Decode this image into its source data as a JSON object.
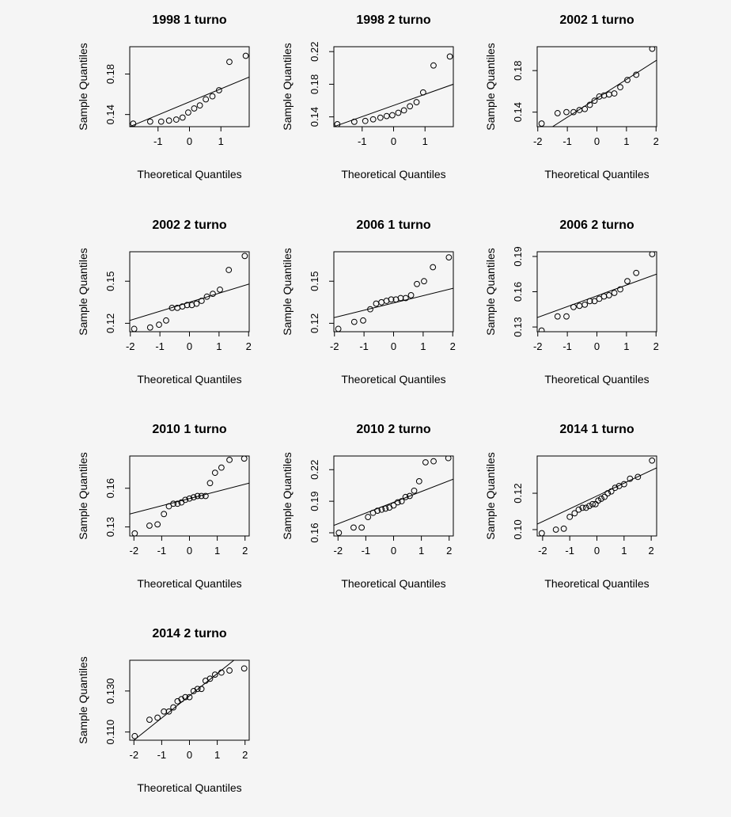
{
  "chart_data": [
    {
      "type": "scatter",
      "title": "1998 1 turno",
      "xlabel": "Theoretical Quantiles",
      "ylabel": "Sample Quantiles",
      "xlim": [
        -1.9,
        1.9
      ],
      "ylim": [
        0.128,
        0.207
      ],
      "xticks": [
        -1,
        0,
        1
      ],
      "xtick_labels": [
        "-1",
        "0",
        "1"
      ],
      "yticks": [
        0.14,
        0.18
      ],
      "ytick_labels": [
        "0.14",
        "0.18"
      ],
      "points": {
        "x": [
          -1.79,
          -1.25,
          -0.9,
          -0.65,
          -0.42,
          -0.22,
          -0.04,
          0.15,
          0.33,
          0.52,
          0.73,
          0.94,
          1.27,
          1.79
        ],
        "y": [
          0.131,
          0.133,
          0.133,
          0.134,
          0.135,
          0.137,
          0.142,
          0.146,
          0.149,
          0.155,
          0.158,
          0.164,
          0.192,
          0.198
        ]
      },
      "qqline": {
        "x": [
          -1.9,
          1.9
        ],
        "y": [
          0.128,
          0.177
        ]
      }
    },
    {
      "type": "scatter",
      "title": "1998 2 turno",
      "xlabel": "Theoretical Quantiles",
      "ylabel": "Sample Quantiles",
      "xlim": [
        -1.9,
        1.9
      ],
      "ylim": [
        0.128,
        0.226
      ],
      "xticks": [
        -1,
        0,
        1
      ],
      "xtick_labels": [
        "-1",
        "0",
        "1"
      ],
      "yticks": [
        0.14,
        0.18,
        0.22
      ],
      "ytick_labels": [
        "0.14",
        "0.18",
        "0.22"
      ],
      "points": {
        "x": [
          -1.79,
          -1.25,
          -0.9,
          -0.65,
          -0.42,
          -0.22,
          -0.04,
          0.15,
          0.33,
          0.52,
          0.73,
          0.94,
          1.27,
          1.79
        ],
        "y": [
          0.131,
          0.134,
          0.135,
          0.137,
          0.139,
          0.141,
          0.142,
          0.145,
          0.148,
          0.153,
          0.158,
          0.17,
          0.203,
          0.214
        ]
      },
      "qqline": {
        "x": [
          -1.9,
          1.9
        ],
        "y": [
          0.128,
          0.18
        ]
      }
    },
    {
      "type": "scatter",
      "title": "2002 1 turno",
      "xlabel": "Theoretical Quantiles",
      "ylabel": "Sample Quantiles",
      "xlim": [
        -2.02,
        2.02
      ],
      "ylim": [
        0.126,
        0.203
      ],
      "xticks": [
        -2,
        -1,
        0,
        1,
        2
      ],
      "xtick_labels": [
        "-2",
        "-1",
        "0",
        "1",
        "2"
      ],
      "yticks": [
        0.14,
        0.18
      ],
      "ytick_labels": [
        "0.14",
        "0.18"
      ],
      "points": {
        "x": [
          -1.87,
          -1.33,
          -1.03,
          -0.79,
          -0.59,
          -0.41,
          -0.24,
          -0.08,
          0.08,
          0.24,
          0.41,
          0.59,
          0.79,
          1.03,
          1.33,
          1.87
        ],
        "y": [
          0.129,
          0.139,
          0.14,
          0.14,
          0.142,
          0.143,
          0.147,
          0.151,
          0.155,
          0.156,
          0.157,
          0.158,
          0.164,
          0.171,
          0.176,
          0.201
        ]
      },
      "qqline": {
        "x": [
          -1.5,
          2.02
        ],
        "y": [
          0.126,
          0.19
        ]
      }
    },
    {
      "type": "scatter",
      "title": "2002 2 turno",
      "xlabel": "Theoretical Quantiles",
      "ylabel": "Sample Quantiles",
      "xlim": [
        -2.02,
        2.02
      ],
      "ylim": [
        0.114,
        0.171
      ],
      "xticks": [
        -2,
        -1,
        0,
        1,
        2
      ],
      "xtick_labels": [
        "-2",
        "-1",
        "0",
        "1",
        "2"
      ],
      "yticks": [
        0.12,
        0.15
      ],
      "ytick_labels": [
        "0.12",
        "0.15"
      ],
      "points": {
        "x": [
          -1.87,
          -1.33,
          -1.03,
          -0.79,
          -0.59,
          -0.41,
          -0.24,
          -0.08,
          0.08,
          0.24,
          0.41,
          0.59,
          0.79,
          1.03,
          1.33,
          1.87
        ],
        "y": [
          0.116,
          0.117,
          0.119,
          0.122,
          0.131,
          0.131,
          0.132,
          0.133,
          0.133,
          0.134,
          0.136,
          0.139,
          0.141,
          0.144,
          0.158,
          0.168
        ]
      },
      "qqline": {
        "x": [
          -2.02,
          2.02
        ],
        "y": [
          0.122,
          0.148
        ]
      }
    },
    {
      "type": "scatter",
      "title": "2006 1 turno",
      "xlabel": "Theoretical Quantiles",
      "ylabel": "Sample Quantiles",
      "xlim": [
        -2.02,
        2.02
      ],
      "ylim": [
        0.114,
        0.171
      ],
      "xticks": [
        -2,
        -1,
        0,
        1,
        2
      ],
      "xtick_labels": [
        "-2",
        "-1",
        "0",
        "1",
        "2"
      ],
      "yticks": [
        0.12,
        0.15
      ],
      "ytick_labels": [
        "0.12",
        "0.15"
      ],
      "points": {
        "x": [
          -1.87,
          -1.33,
          -1.03,
          -0.79,
          -0.59,
          -0.41,
          -0.24,
          -0.08,
          0.08,
          0.24,
          0.41,
          0.59,
          0.79,
          1.03,
          1.33,
          1.87
        ],
        "y": [
          0.116,
          0.121,
          0.122,
          0.13,
          0.134,
          0.135,
          0.136,
          0.137,
          0.137,
          0.138,
          0.138,
          0.14,
          0.148,
          0.15,
          0.16,
          0.167
        ]
      },
      "qqline": {
        "x": [
          -2.02,
          2.02
        ],
        "y": [
          0.124,
          0.145
        ]
      }
    },
    {
      "type": "scatter",
      "title": "2006 2 turno",
      "xlabel": "Theoretical Quantiles",
      "ylabel": "Sample Quantiles",
      "xlim": [
        -2.02,
        2.02
      ],
      "ylim": [
        0.126,
        0.194
      ],
      "xticks": [
        -2,
        -1,
        0,
        1,
        2
      ],
      "xtick_labels": [
        "-2",
        "-1",
        "0",
        "1",
        "2"
      ],
      "yticks": [
        0.13,
        0.16,
        0.19
      ],
      "ytick_labels": [
        "0.13",
        "0.16",
        "0.19"
      ],
      "points": {
        "x": [
          -1.87,
          -1.33,
          -1.03,
          -0.79,
          -0.59,
          -0.41,
          -0.24,
          -0.08,
          0.08,
          0.24,
          0.41,
          0.59,
          0.79,
          1.03,
          1.33,
          1.87
        ],
        "y": [
          0.127,
          0.139,
          0.139,
          0.147,
          0.148,
          0.149,
          0.152,
          0.152,
          0.154,
          0.156,
          0.157,
          0.159,
          0.162,
          0.169,
          0.176,
          0.192
        ]
      },
      "qqline": {
        "x": [
          -2.02,
          2.02
        ],
        "y": [
          0.138,
          0.175
        ]
      }
    },
    {
      "type": "scatter",
      "title": "2010 1 turno",
      "xlabel": "Theoretical Quantiles",
      "ylabel": "Sample Quantiles",
      "xlim": [
        -2.15,
        2.15
      ],
      "ylim": [
        0.123,
        0.185
      ],
      "xticks": [
        -2,
        -1,
        0,
        1,
        2
      ],
      "xtick_labels": [
        "-2",
        "-1",
        "0",
        "1",
        "2"
      ],
      "yticks": [
        0.13,
        0.16
      ],
      "ytick_labels": [
        "0.13",
        "0.16"
      ],
      "points": {
        "x": [
          -1.97,
          -1.44,
          -1.15,
          -0.92,
          -0.74,
          -0.58,
          -0.43,
          -0.29,
          -0.15,
          0.0,
          0.15,
          0.29,
          0.43,
          0.58,
          0.74,
          0.92,
          1.15,
          1.44,
          1.97
        ],
        "y": [
          0.125,
          0.131,
          0.132,
          0.14,
          0.146,
          0.148,
          0.148,
          0.149,
          0.151,
          0.152,
          0.153,
          0.154,
          0.154,
          0.154,
          0.164,
          0.172,
          0.176,
          0.182,
          0.183
        ]
      },
      "qqline": {
        "x": [
          -2.15,
          2.15
        ],
        "y": [
          0.14,
          0.164
        ]
      }
    },
    {
      "type": "scatter",
      "title": "2010 2 turno",
      "xlabel": "Theoretical Quantiles",
      "ylabel": "Sample Quantiles",
      "xlim": [
        -2.15,
        2.15
      ],
      "ylim": [
        0.157,
        0.233
      ],
      "xticks": [
        -2,
        -1,
        0,
        1,
        2
      ],
      "xtick_labels": [
        "-2",
        "-1",
        "0",
        "1",
        "2"
      ],
      "yticks": [
        0.16,
        0.19,
        0.22
      ],
      "ytick_labels": [
        "0.16",
        "0.19",
        "0.22"
      ],
      "points": {
        "x": [
          -1.97,
          -1.44,
          -1.15,
          -0.92,
          -0.74,
          -0.58,
          -0.43,
          -0.29,
          -0.15,
          0.0,
          0.15,
          0.29,
          0.43,
          0.58,
          0.74,
          0.92,
          1.15,
          1.44,
          1.97
        ],
        "y": [
          0.16,
          0.165,
          0.165,
          0.175,
          0.179,
          0.181,
          0.182,
          0.183,
          0.184,
          0.186,
          0.189,
          0.19,
          0.194,
          0.195,
          0.2,
          0.209,
          0.227,
          0.228,
          0.231
        ]
      },
      "qqline": {
        "x": [
          -2.15,
          2.15
        ],
        "y": [
          0.167,
          0.211
        ]
      }
    },
    {
      "type": "scatter",
      "title": "2014 1 turno",
      "xlabel": "Theoretical Quantiles",
      "ylabel": "Sample Quantiles",
      "xlim": [
        -2.2,
        2.2
      ],
      "ylim": [
        0.0965,
        0.1405
      ],
      "xticks": [
        -2,
        -1,
        0,
        1,
        2
      ],
      "xtick_labels": [
        "-2",
        "-1",
        "0",
        "1",
        "2"
      ],
      "yticks": [
        0.1,
        0.12
      ],
      "ytick_labels": [
        "0.10",
        "0.12"
      ],
      "points": {
        "x": [
          -2.03,
          -1.51,
          -1.22,
          -1.0,
          -0.82,
          -0.67,
          -0.53,
          -0.4,
          -0.28,
          -0.16,
          -0.05,
          0.05,
          0.16,
          0.28,
          0.4,
          0.53,
          0.67,
          0.82,
          1.0,
          1.22,
          1.51,
          2.03
        ],
        "y": [
          0.098,
          0.1,
          0.1005,
          0.107,
          0.109,
          0.111,
          0.112,
          0.112,
          0.113,
          0.114,
          0.114,
          0.116,
          0.117,
          0.118,
          0.12,
          0.121,
          0.123,
          0.124,
          0.125,
          0.128,
          0.129,
          0.138
        ]
      },
      "qqline": {
        "x": [
          -2.2,
          2.2
        ],
        "y": [
          0.103,
          0.134
        ]
      }
    },
    {
      "type": "scatter",
      "title": "2014 2 turno",
      "xlabel": "Theoretical Quantiles",
      "ylabel": "Sample Quantiles",
      "xlim": [
        -2.15,
        2.15
      ],
      "ylim": [
        0.106,
        0.145
      ],
      "xticks": [
        -2,
        -1,
        0,
        1,
        2
      ],
      "xtick_labels": [
        "-2",
        "-1",
        "0",
        "1",
        "2"
      ],
      "yticks": [
        0.11,
        0.13
      ],
      "ytick_labels": [
        "0.110",
        "0.130"
      ],
      "points": {
        "x": [
          -1.97,
          -1.44,
          -1.15,
          -0.92,
          -0.74,
          -0.58,
          -0.43,
          -0.29,
          -0.15,
          0.0,
          0.15,
          0.29,
          0.43,
          0.58,
          0.74,
          0.92,
          1.15,
          1.44,
          1.97
        ],
        "y": [
          0.108,
          0.116,
          0.117,
          0.12,
          0.12,
          0.122,
          0.125,
          0.126,
          0.127,
          0.127,
          0.13,
          0.131,
          0.131,
          0.135,
          0.136,
          0.138,
          0.139,
          0.14,
          0.141
        ]
      },
      "qqline": {
        "x": [
          -2.0,
          1.6
        ],
        "y": [
          0.106,
          0.145
        ]
      }
    }
  ]
}
